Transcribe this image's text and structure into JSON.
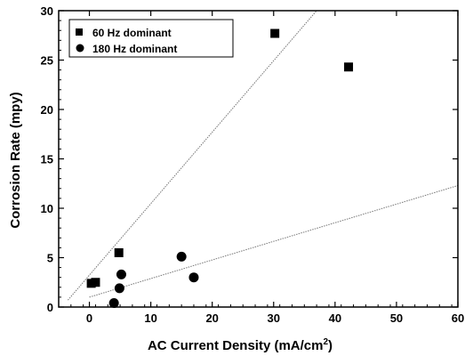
{
  "chart_data": {
    "type": "scatter",
    "title": "",
    "xlabel": "AC Current Density (mA/cm",
    "xlabel_sup": "2",
    "xlabel_suffix": ")",
    "ylabel": "Corrosion Rate (mpy)",
    "xlim": [
      -5,
      60
    ],
    "ylim": [
      0,
      30
    ],
    "xticks": [
      0,
      10,
      20,
      30,
      40,
      50,
      60
    ],
    "yticks": [
      0,
      5,
      10,
      15,
      20,
      25,
      30
    ],
    "grid": false,
    "legend_position": "top-left",
    "series": [
      {
        "name": "60 Hz dominant",
        "marker": "square",
        "points": [
          [
            0.3,
            2.4
          ],
          [
            1.0,
            2.5
          ],
          [
            4.8,
            5.5
          ],
          [
            30.2,
            27.7
          ],
          [
            42.2,
            24.3
          ]
        ],
        "trendline": [
          [
            -3.5,
            0.7
          ],
          [
            37.0,
            30.0
          ]
        ]
      },
      {
        "name": "180 Hz dominant",
        "marker": "circle",
        "points": [
          [
            4.0,
            0.4
          ],
          [
            4.9,
            1.9
          ],
          [
            5.2,
            3.3
          ],
          [
            15.0,
            5.1
          ],
          [
            17.0,
            3.0
          ]
        ],
        "trendline": [
          [
            0.0,
            1.0
          ],
          [
            60.0,
            12.3
          ]
        ]
      }
    ]
  }
}
